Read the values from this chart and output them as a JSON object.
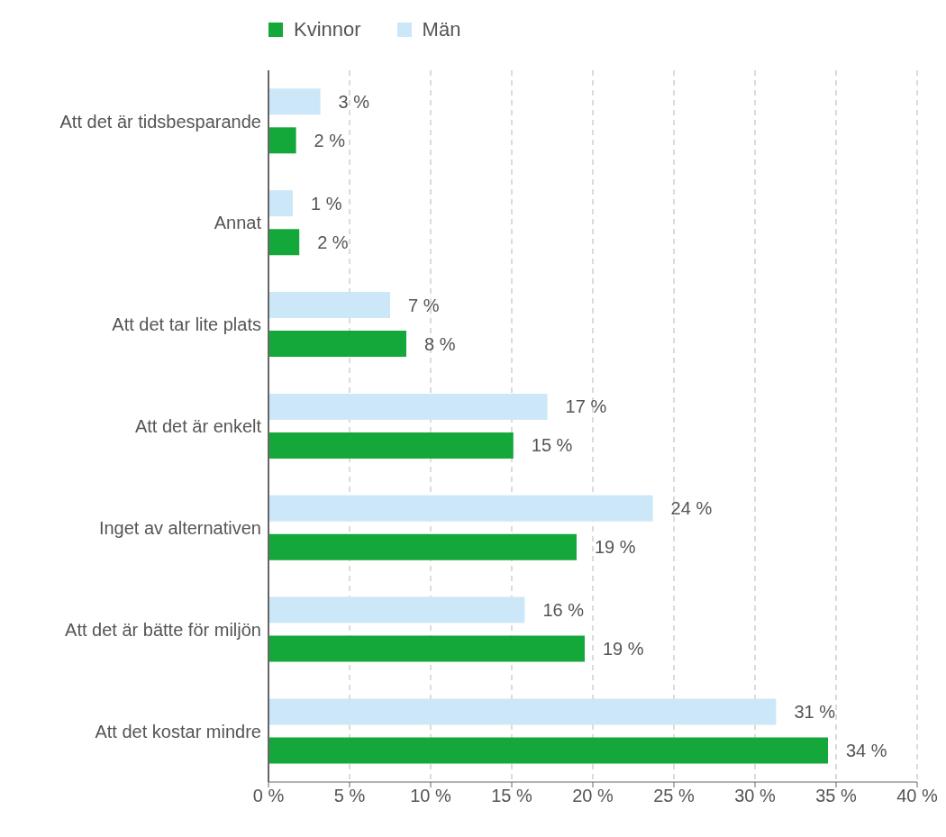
{
  "chart_data": {
    "type": "bar",
    "orientation": "horizontal",
    "categories": [
      "Att det är tidsbesparande",
      "Annat",
      "Att det tar lite plats",
      "Att det är enkelt",
      "Inget av alternativen",
      "Att det är bätte för miljön",
      "Att det kostar mindre"
    ],
    "series": [
      {
        "name": "Kvinnor",
        "color": "#14a83b",
        "values": [
          1.7,
          1.9,
          8.5,
          15.1,
          19.0,
          19.5,
          34.5
        ],
        "value_labels": [
          "2 %",
          "2 %",
          "8 %",
          "15 %",
          "19 %",
          "19 %",
          "34 %"
        ]
      },
      {
        "name": "Män",
        "color": "#cce8f8",
        "values": [
          3.2,
          1.5,
          7.5,
          17.2,
          23.7,
          15.8,
          31.3
        ],
        "value_labels": [
          "3 %",
          "1 %",
          "7 %",
          "17 %",
          "24 %",
          "16 %",
          "31 %"
        ]
      }
    ],
    "xlim": [
      0,
      40
    ],
    "xticks": [
      {
        "value": 0,
        "label": "0 %"
      },
      {
        "value": 5,
        "label": "5 %"
      },
      {
        "value": 10,
        "label": "10 %"
      },
      {
        "value": 15,
        "label": "15 %"
      },
      {
        "value": 20,
        "label": "20 %"
      },
      {
        "value": 25,
        "label": "25 %"
      },
      {
        "value": 30,
        "label": "30 %"
      },
      {
        "value": 35,
        "label": "35 %"
      },
      {
        "value": 40,
        "label": "40 %"
      }
    ],
    "grid": "x",
    "legend": "top"
  }
}
